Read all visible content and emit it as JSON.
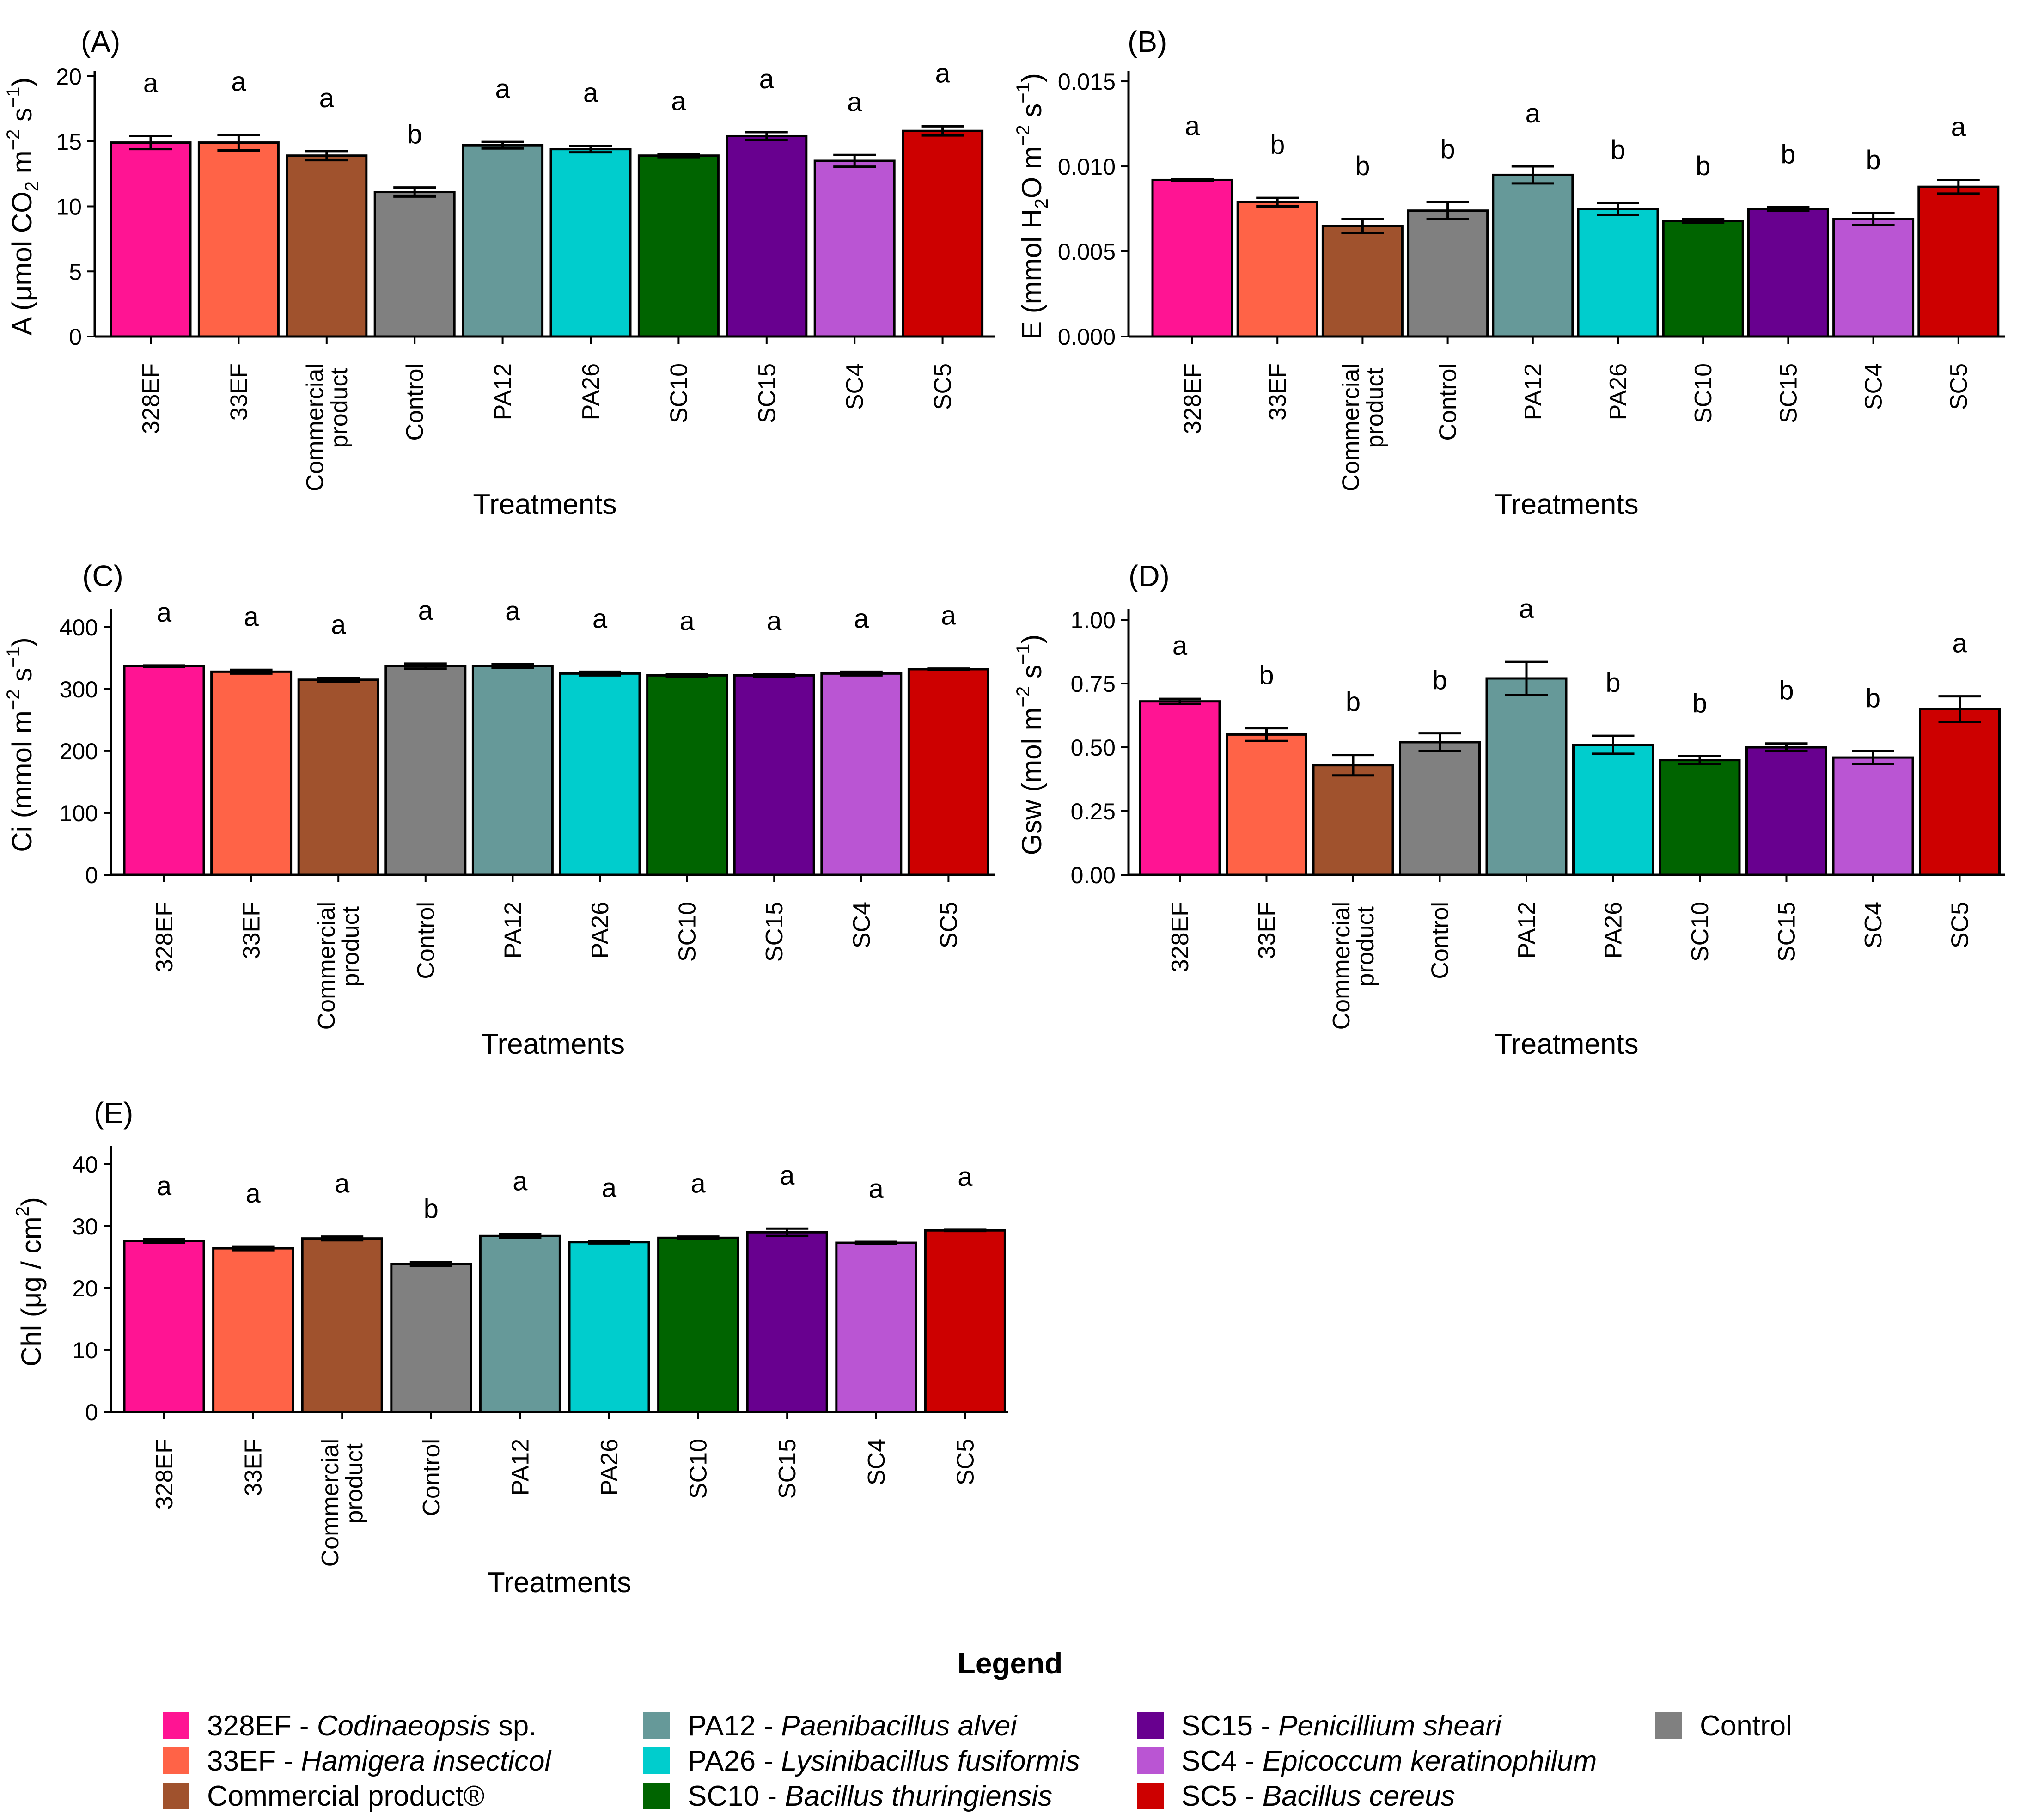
{
  "treatments": [
    "328EF",
    "33EF",
    "Commercial product",
    "Control",
    "PA12",
    "PA26",
    "SC10",
    "SC15",
    "SC4",
    "SC5"
  ],
  "colors": [
    "#ff1493",
    "#ff6347",
    "#a0522d",
    "#808080",
    "#669999",
    "#00cdcd",
    "#006400",
    "#68008f",
    "#ba55d3",
    "#cd0000"
  ],
  "chart_data": [
    {
      "type": "bar",
      "panel": "(A)",
      "ylabel": "A (μmol CO2 m-2 s-1)",
      "xlabel": "Treatments",
      "categories": [
        "328EF",
        "33EF",
        "Commercial product",
        "Control",
        "PA12",
        "PA26",
        "SC10",
        "SC15",
        "SC4",
        "SC5"
      ],
      "values": [
        14.9,
        14.9,
        13.9,
        11.1,
        14.7,
        14.4,
        13.9,
        15.4,
        13.5,
        15.8
      ],
      "errors": [
        0.5,
        0.6,
        0.35,
        0.35,
        0.25,
        0.25,
        0.12,
        0.3,
        0.45,
        0.35
      ],
      "letters": [
        "a",
        "a",
        "a",
        "b",
        "a",
        "a",
        "a",
        "a",
        "a",
        "a"
      ],
      "ylim": [
        0,
        20
      ],
      "yticks": [
        0,
        5,
        10,
        15,
        20
      ],
      "ytick_labels": [
        "0",
        "5",
        "10",
        "15",
        "20"
      ],
      "ylabel_parts": [
        [
          "A (μmol CO",
          ""
        ],
        [
          "2",
          "sub"
        ],
        [
          " m",
          ""
        ],
        [
          "−2",
          "sup"
        ],
        [
          " s",
          ""
        ],
        [
          "−1",
          "sup"
        ],
        [
          ")",
          ""
        ]
      ]
    },
    {
      "type": "bar",
      "panel": "(B)",
      "ylabel": "E (mmol H2O m-2 s-1)",
      "xlabel": "Treatments",
      "categories": [
        "328EF",
        "33EF",
        "Commercial product",
        "Control",
        "PA12",
        "PA26",
        "SC10",
        "SC15",
        "SC4",
        "SC5"
      ],
      "values": [
        0.0092,
        0.0079,
        0.0065,
        0.0074,
        0.0095,
        0.0075,
        0.0068,
        0.0075,
        0.0069,
        0.0088
      ],
      "errors": [
        5e-05,
        0.00025,
        0.0004,
        0.0005,
        0.0005,
        0.00035,
        0.0001,
        0.0001,
        0.00035,
        0.0004
      ],
      "letters": [
        "a",
        "b",
        "b",
        "b",
        "a",
        "b",
        "b",
        "b",
        "b",
        "a"
      ],
      "ylim": [
        0,
        0.0153
      ],
      "yticks": [
        0,
        0.005,
        0.01,
        0.015
      ],
      "ytick_labels": [
        "0.000",
        "0.005",
        "0.010",
        "0.015"
      ],
      "ylabel_parts": [
        [
          "E (mmol H",
          ""
        ],
        [
          "2",
          "sub"
        ],
        [
          "O m",
          ""
        ],
        [
          "−2",
          "sup"
        ],
        [
          " s",
          ""
        ],
        [
          "−1",
          "sup"
        ],
        [
          ")",
          ""
        ]
      ]
    },
    {
      "type": "bar",
      "panel": "(C)",
      "ylabel": "Ci (mmol m-2 s-1)",
      "xlabel": "Treatments",
      "categories": [
        "328EF",
        "33EF",
        "Commercial product",
        "Control",
        "PA12",
        "PA26",
        "SC10",
        "SC15",
        "SC4",
        "SC5"
      ],
      "values": [
        337,
        328,
        315,
        337,
        337,
        325,
        322,
        322,
        325,
        332
      ],
      "errors": [
        1,
        3,
        3,
        4,
        3,
        3,
        2,
        2,
        3,
        1
      ],
      "letters": [
        "a",
        "a",
        "a",
        "a",
        "a",
        "a",
        "a",
        "a",
        "a",
        "a"
      ],
      "ylim": [
        0,
        420
      ],
      "yticks": [
        0,
        100,
        200,
        300,
        400
      ],
      "ytick_labels": [
        "0",
        "100",
        "200",
        "300",
        "400"
      ],
      "ylabel_parts": [
        [
          "Ci (mmol m",
          ""
        ],
        [
          "−2",
          "sup"
        ],
        [
          " s",
          ""
        ],
        [
          "−1",
          "sup"
        ],
        [
          ")",
          ""
        ]
      ]
    },
    {
      "type": "bar",
      "panel": "(D)",
      "ylabel": "Gsw (mol m-2 s-1)",
      "xlabel": "Treatments",
      "categories": [
        "328EF",
        "33EF",
        "Commercial product",
        "Control",
        "PA12",
        "PA26",
        "SC10",
        "SC15",
        "SC4",
        "SC5"
      ],
      "values": [
        0.68,
        0.55,
        0.43,
        0.52,
        0.77,
        0.51,
        0.45,
        0.5,
        0.46,
        0.65
      ],
      "errors": [
        0.01,
        0.025,
        0.04,
        0.035,
        0.065,
        0.035,
        0.015,
        0.015,
        0.025,
        0.05
      ],
      "letters": [
        "a",
        "b",
        "b",
        "b",
        "a",
        "b",
        "b",
        "b",
        "b",
        "a"
      ],
      "ylim": [
        0,
        1.02
      ],
      "yticks": [
        0,
        0.25,
        0.5,
        0.75,
        1.0
      ],
      "ytick_labels": [
        "0.00",
        "0.25",
        "0.50",
        "0.75",
        "1.00"
      ],
      "ylabel_parts": [
        [
          "Gsw (mol m",
          ""
        ],
        [
          "−2",
          "sup"
        ],
        [
          " s",
          ""
        ],
        [
          "−1",
          "sup"
        ],
        [
          ")",
          ""
        ]
      ]
    },
    {
      "type": "bar",
      "panel": "(E)",
      "ylabel": "Chl (μg / cm2)",
      "xlabel": "Treatments",
      "categories": [
        "328EF",
        "33EF",
        "Commercial product",
        "Control",
        "PA12",
        "PA26",
        "SC10",
        "SC15",
        "SC4",
        "SC5"
      ],
      "values": [
        27.6,
        26.4,
        28.0,
        23.9,
        28.4,
        27.4,
        28.1,
        29.0,
        27.3,
        29.3
      ],
      "errors": [
        0.3,
        0.3,
        0.3,
        0.3,
        0.3,
        0.2,
        0.2,
        0.6,
        0.15,
        0.1
      ],
      "letters": [
        "a",
        "a",
        "a",
        "b",
        "a",
        "a",
        "a",
        "a",
        "a",
        "a"
      ],
      "ylim": [
        0,
        42
      ],
      "yticks": [
        0,
        10,
        20,
        30,
        40
      ],
      "ytick_labels": [
        "0",
        "10",
        "20",
        "30",
        "40"
      ],
      "ylabel_parts": [
        [
          "Chl (μg / cm",
          ""
        ],
        [
          "2",
          "sup"
        ],
        [
          ")",
          ""
        ]
      ]
    }
  ],
  "legend": {
    "title": "Legend",
    "items": [
      {
        "code": "328EF",
        "sep": " - ",
        "species": "Codinaeopsis",
        "suffix": " sp.",
        "color": "#ff1493"
      },
      {
        "code": "33EF",
        "sep": " - ",
        "species": "Hamigera insecticol",
        "suffix": "",
        "color": "#ff6347"
      },
      {
        "code": "Commercial product®",
        "sep": "",
        "species": "",
        "suffix": "",
        "color": "#a0522d"
      },
      {
        "code": "PA12",
        "sep": " - ",
        "species": "Paenibacillus alvei",
        "suffix": "",
        "color": "#669999"
      },
      {
        "code": "PA26",
        "sep": " - ",
        "species": "Lysinibacillus fusiformis",
        "suffix": "",
        "color": "#00cdcd"
      },
      {
        "code": "SC10",
        "sep": " - ",
        "species": "Bacillus thuringiensis",
        "suffix": "",
        "color": "#006400"
      },
      {
        "code": "SC15",
        "sep": " - ",
        "species": "Penicillium sheari",
        "suffix": "",
        "color": "#68008f"
      },
      {
        "code": "SC4",
        "sep": " - ",
        "species": "Epicoccum keratinophilum",
        "suffix": "",
        "color": "#ba55d3"
      },
      {
        "code": "SC5",
        "sep": " - ",
        "species": "Bacillus cereus",
        "suffix": "",
        "color": "#cd0000"
      },
      {
        "code": "Control",
        "sep": "",
        "species": "",
        "suffix": "",
        "color": "#808080"
      }
    ]
  }
}
